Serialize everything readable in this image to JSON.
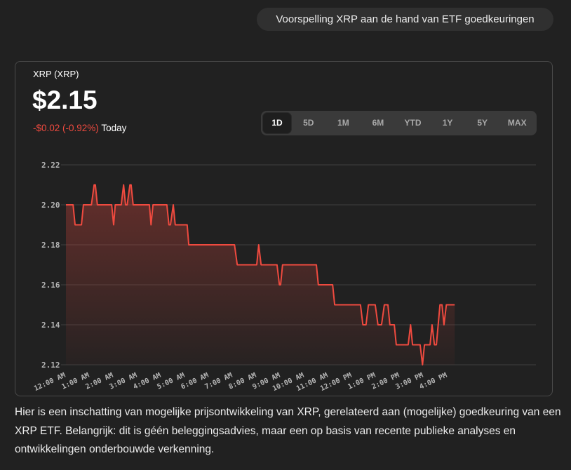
{
  "user_message": "Voorspelling XRP aan de hand van ETF goedkeuringen",
  "widget": {
    "name": "XRP (XRP)",
    "price": "$2.15",
    "change": "-$0.02 (-0.92%)",
    "change_period": "Today",
    "ranges": [
      "1D",
      "5D",
      "1M",
      "6M",
      "YTD",
      "1Y",
      "5Y",
      "MAX"
    ],
    "active_range": "1D"
  },
  "colors": {
    "line": "#ef4a3f",
    "negative": "#ef4a3f",
    "background": "#212121"
  },
  "chart_data": {
    "type": "line",
    "title": "XRP (XRP)",
    "xlabel": "",
    "ylabel": "",
    "ylim": [
      2.12,
      2.22
    ],
    "yticks": [
      "2.22",
      "2.20",
      "2.18",
      "2.16",
      "2.14",
      "2.12"
    ],
    "xticks": [
      "12:00 AM",
      "1:00 AM",
      "2:00 AM",
      "3:00 AM",
      "4:00 AM",
      "5:00 AM",
      "6:00 AM",
      "7:00 AM",
      "8:00 AM",
      "9:00 AM",
      "10:00 AM",
      "11:00 AM",
      "12:00 PM",
      "1:00 PM",
      "2:00 PM",
      "3:00 PM",
      "4:00 PM"
    ],
    "x_unit": "minutes since 12:00 AM",
    "points": [
      [
        0,
        2.2
      ],
      [
        18,
        2.2
      ],
      [
        23,
        2.19
      ],
      [
        39,
        2.19
      ],
      [
        44,
        2.2
      ],
      [
        64,
        2.2
      ],
      [
        71,
        2.21
      ],
      [
        74,
        2.21
      ],
      [
        79,
        2.2
      ],
      [
        115,
        2.2
      ],
      [
        120,
        2.19
      ],
      [
        124,
        2.2
      ],
      [
        139,
        2.2
      ],
      [
        145,
        2.21
      ],
      [
        150,
        2.2
      ],
      [
        154,
        2.2
      ],
      [
        161,
        2.21
      ],
      [
        164,
        2.21
      ],
      [
        169,
        2.2
      ],
      [
        210,
        2.2
      ],
      [
        214,
        2.19
      ],
      [
        219,
        2.2
      ],
      [
        254,
        2.2
      ],
      [
        259,
        2.19
      ],
      [
        263,
        2.19
      ],
      [
        270,
        2.2
      ],
      [
        275,
        2.19
      ],
      [
        305,
        2.19
      ],
      [
        309,
        2.18
      ],
      [
        424,
        2.18
      ],
      [
        431,
        2.17
      ],
      [
        480,
        2.17
      ],
      [
        485,
        2.18
      ],
      [
        491,
        2.17
      ],
      [
        531,
        2.17
      ],
      [
        537,
        2.16
      ],
      [
        540,
        2.16
      ],
      [
        545,
        2.17
      ],
      [
        630,
        2.17
      ],
      [
        635,
        2.16
      ],
      [
        671,
        2.16
      ],
      [
        676,
        2.15
      ],
      [
        741,
        2.15
      ],
      [
        747,
        2.14
      ],
      [
        755,
        2.14
      ],
      [
        761,
        2.15
      ],
      [
        778,
        2.15
      ],
      [
        785,
        2.14
      ],
      [
        794,
        2.14
      ],
      [
        801,
        2.15
      ],
      [
        810,
        2.15
      ],
      [
        815,
        2.14
      ],
      [
        826,
        2.14
      ],
      [
        831,
        2.13
      ],
      [
        861,
        2.13
      ],
      [
        867,
        2.14
      ],
      [
        872,
        2.13
      ],
      [
        891,
        2.13
      ],
      [
        897,
        2.12
      ],
      [
        902,
        2.13
      ],
      [
        916,
        2.13
      ],
      [
        921,
        2.14
      ],
      [
        927,
        2.13
      ],
      [
        932,
        2.13
      ],
      [
        941,
        2.15
      ],
      [
        946,
        2.15
      ],
      [
        951,
        2.14
      ],
      [
        957,
        2.15
      ],
      [
        978,
        2.15
      ]
    ]
  },
  "response_text": "Hier is een inschatting van mogelijke prijsontwikkeling van XRP, gerelateerd aan (mogelijke) goedkeuring van een XRP ETF. Belangrijk: dit is géén beleggingsadvies, maar een op basis van recente publieke analyses en ontwikkelingen onderbouwde verkenning."
}
